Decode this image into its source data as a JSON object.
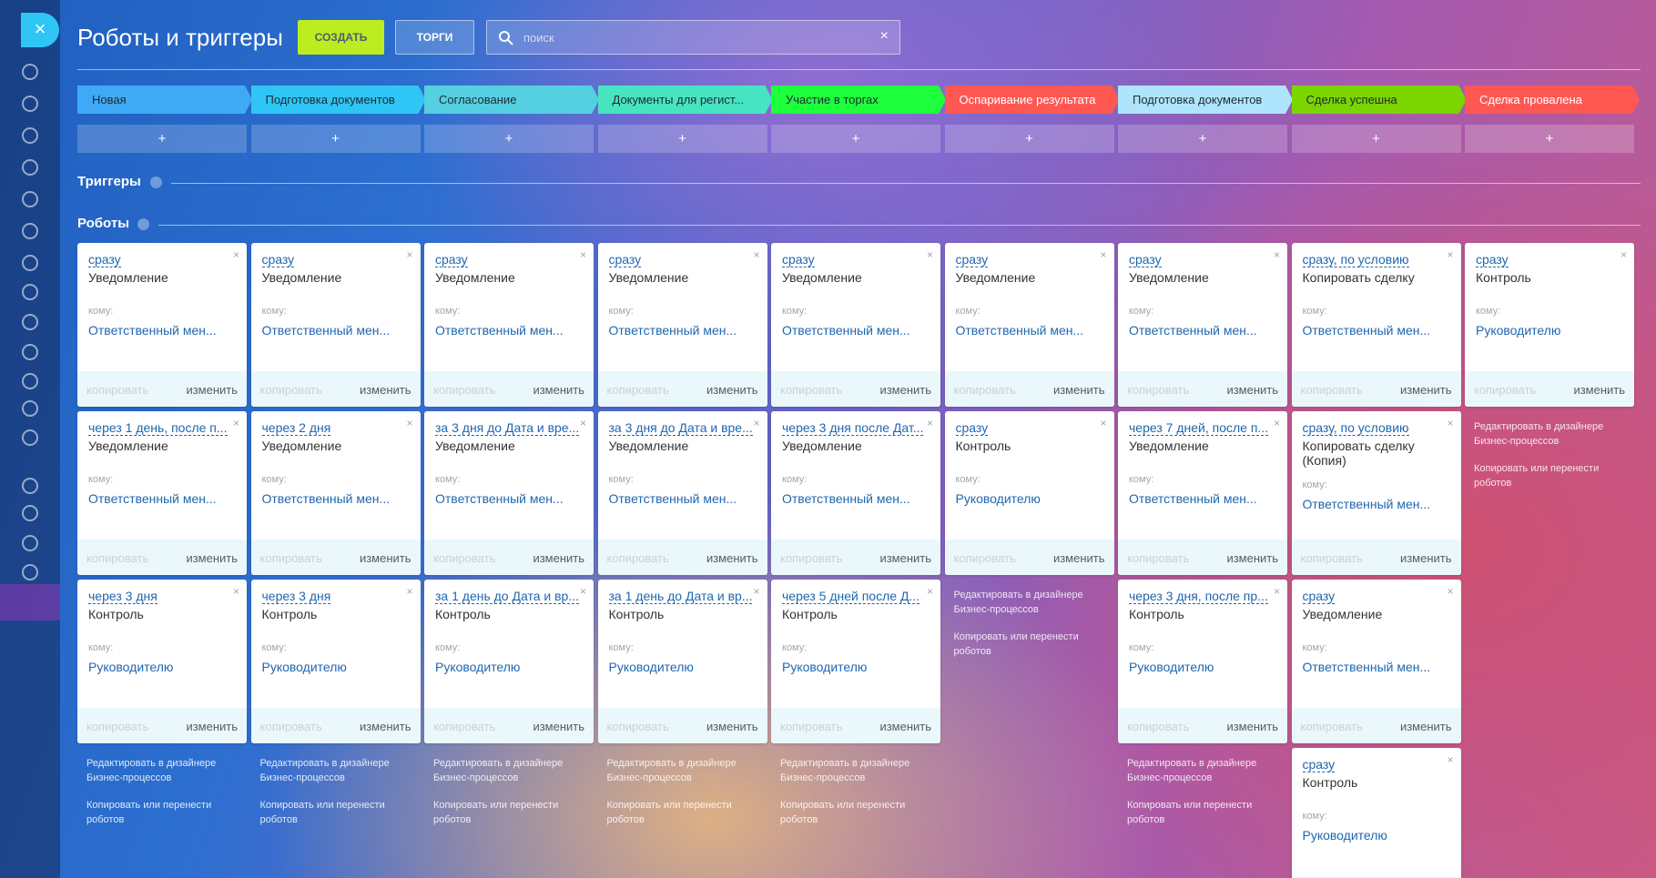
{
  "header": {
    "title": "Роботы и триггеры",
    "create_button": "СОЗДАТЬ",
    "filter_button": "ТОРГИ",
    "search_placeholder": "поиск"
  },
  "sections": {
    "triggers": "Триггеры",
    "robots": "Роботы"
  },
  "add_label": "+",
  "robot_labels": {
    "to": "кому:",
    "copy": "копировать",
    "edit": "изменить"
  },
  "footer_links": {
    "edit": "Редактировать в дизайнере Бизнес-процессов",
    "copy": "Копировать или перенести роботов"
  },
  "stages": [
    {
      "name": "Новая",
      "color": "#3fa9f5",
      "text_color": "#1e2a33",
      "robots": [
        {
          "when": "сразу",
          "action": "Уведомление",
          "recipient": "Ответственный мен..."
        },
        {
          "when": "через 1 день, после п...",
          "action": "Уведомление",
          "recipient": "Ответственный мен..."
        },
        {
          "when": "через 3 дня",
          "action": "Контроль",
          "recipient": "Руководителю"
        }
      ]
    },
    {
      "name": "Подготовка документов",
      "color": "#2fc6f6",
      "text_color": "#1e2a33",
      "robots": [
        {
          "when": "сразу",
          "action": "Уведомление",
          "recipient": "Ответственный мен..."
        },
        {
          "when": "через 2 дня",
          "action": "Уведомление",
          "recipient": "Ответственный мен..."
        },
        {
          "when": "через 3 дня",
          "action": "Контроль",
          "recipient": "Руководителю"
        }
      ]
    },
    {
      "name": "Согласование",
      "color": "#55d0e0",
      "text_color": "#1e2a33",
      "robots": [
        {
          "when": "сразу",
          "action": "Уведомление",
          "recipient": "Ответственный мен..."
        },
        {
          "when": "за 3 дня до Дата и вре...",
          "action": "Уведомление",
          "recipient": "Ответственный мен..."
        },
        {
          "when": "за 1 день до Дата и вр...",
          "action": "Контроль",
          "recipient": "Руководителю"
        }
      ]
    },
    {
      "name": "Документы для регист...",
      "color": "#47e4c2",
      "text_color": "#1e2a33",
      "robots": [
        {
          "when": "сразу",
          "action": "Уведомление",
          "recipient": "Ответственный мен..."
        },
        {
          "when": "за 3 дня до Дата и вре...",
          "action": "Уведомление",
          "recipient": "Ответственный мен..."
        },
        {
          "when": "за 1 день до Дата и вр...",
          "action": "Контроль",
          "recipient": "Руководителю"
        }
      ]
    },
    {
      "name": "Участие в торгах",
      "color": "#1eff3c",
      "text_color": "#1e2a33",
      "robots": [
        {
          "when": "сразу",
          "action": "Уведомление",
          "recipient": "Ответственный мен..."
        },
        {
          "when": "через 3 дня после Дат...",
          "action": "Уведомление",
          "recipient": "Ответственный мен..."
        },
        {
          "when": "через 5 дней после Д...",
          "action": "Контроль",
          "recipient": "Руководителю"
        }
      ]
    },
    {
      "name": "Оспаривание результата",
      "color": "#ff5752",
      "text_color": "#ffffff",
      "robots": [
        {
          "when": "сразу",
          "action": "Уведомление",
          "recipient": "Ответственный мен..."
        },
        {
          "when": "сразу",
          "action": "Контроль",
          "recipient": "Руководителю"
        }
      ]
    },
    {
      "name": "Подготовка документов",
      "color": "#aee5fc",
      "text_color": "#1e2a33",
      "robots": [
        {
          "when": "сразу",
          "action": "Уведомление",
          "recipient": "Ответственный мен..."
        },
        {
          "when": "через 7 дней, после п...",
          "action": "Уведомление",
          "recipient": "Ответственный мен..."
        },
        {
          "when": "через 3 дня, после пр...",
          "action": "Контроль",
          "recipient": "Руководителю"
        }
      ]
    },
    {
      "name": "Сделка успешна",
      "color": "#7bd500",
      "text_color": "#1e2a33",
      "robots": [
        {
          "when": "сразу, по условию",
          "action": "Копировать сделку",
          "recipient": "Ответственный мен..."
        },
        {
          "when": "сразу, по условию",
          "action": "Копировать сделку (Копия)",
          "recipient": "Ответственный мен..."
        },
        {
          "when": "сразу",
          "action": "Уведомление",
          "recipient": "Ответственный мен..."
        },
        {
          "when": "сразу",
          "action": "Контроль",
          "recipient": "Руководителю"
        }
      ]
    },
    {
      "name": "Сделка провалена",
      "color": "#ff5752",
      "text_color": "#ffffff",
      "robots": [
        {
          "when": "сразу",
          "action": "Контроль",
          "recipient": "Руководителю"
        }
      ]
    }
  ]
}
